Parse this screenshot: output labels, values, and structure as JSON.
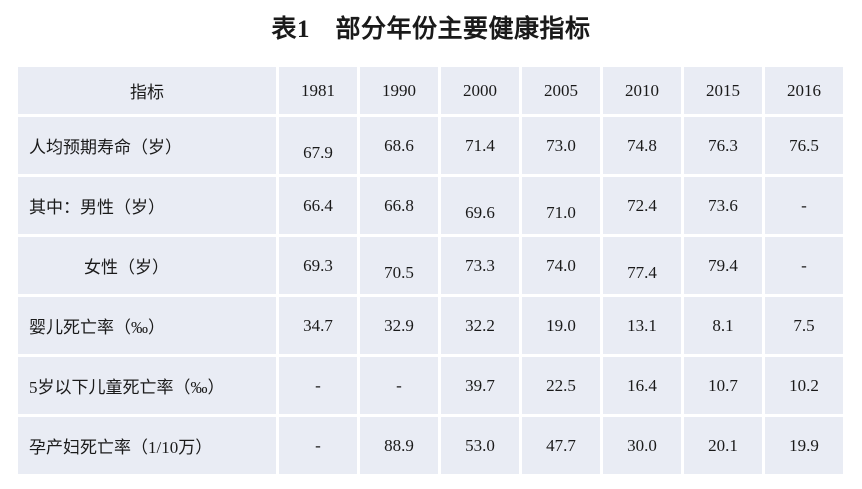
{
  "title": "表1　部分年份主要健康指标",
  "table": {
    "header": [
      "指标",
      "1981",
      "1990",
      "2000",
      "2005",
      "2010",
      "2015",
      "2016"
    ],
    "rows": [
      {
        "label": "人均预期寿命（岁）",
        "indent": false,
        "values": [
          "67.9",
          "68.6",
          "71.4",
          "73.0",
          "74.8",
          "76.3",
          "76.5"
        ],
        "low_cells": [
          0
        ]
      },
      {
        "label": "其中：男性（岁）",
        "indent": false,
        "values": [
          "66.4",
          "66.8",
          "69.6",
          "71.0",
          "72.4",
          "73.6",
          "-"
        ],
        "low_cells": [
          2,
          3
        ]
      },
      {
        "label": "女性（岁）",
        "indent": true,
        "values": [
          "69.3",
          "70.5",
          "73.3",
          "74.0",
          "77.4",
          "79.4",
          "-"
        ],
        "low_cells": [
          1,
          4
        ]
      },
      {
        "label": "婴儿死亡率（‰）",
        "indent": false,
        "values": [
          "34.7",
          "32.9",
          "32.2",
          "19.0",
          "13.1",
          "8.1",
          "7.5"
        ],
        "low_cells": []
      },
      {
        "label": "5岁以下儿童死亡率（‰）",
        "indent": false,
        "values": [
          "-",
          "-",
          "39.7",
          "22.5",
          "16.4",
          "10.7",
          "10.2"
        ],
        "low_cells": []
      },
      {
        "label": "孕产妇死亡率（1/10万）",
        "indent": false,
        "values": [
          "-",
          "88.9",
          "53.0",
          "47.7",
          "30.0",
          "20.1",
          "19.9"
        ],
        "low_cells": []
      }
    ]
  },
  "colors": {
    "cell_background": "#E9ECF4",
    "gridline": "#FFFFFF",
    "text": "#1A1A1A",
    "page_background": "#FFFFFF"
  }
}
